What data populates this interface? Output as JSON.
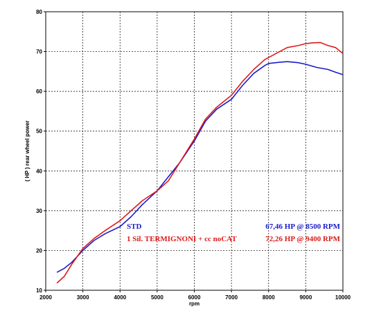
{
  "chart_data": {
    "type": "line",
    "title": "",
    "xlabel": "rpm",
    "ylabel": "( HP )  rear wheel power",
    "xlim": [
      2000,
      10000
    ],
    "ylim": [
      10,
      80
    ],
    "xticks": [
      2000,
      3000,
      4000,
      5000,
      6000,
      7000,
      8000,
      9000,
      10000
    ],
    "yticks": [
      10,
      20,
      30,
      40,
      50,
      60,
      70,
      80
    ],
    "grid": true,
    "legend_position": "lower-right inside plot",
    "series": [
      {
        "name": "STD",
        "peak_label": "67,46 HP @ 8500 RPM",
        "color": "#1a1acc",
        "x": [
          2300,
          2500,
          2700,
          3000,
          3300,
          3600,
          4000,
          4300,
          4600,
          5000,
          5300,
          5600,
          6000,
          6300,
          6600,
          7000,
          7300,
          7600,
          7900,
          8000,
          8300,
          8500,
          8800,
          9000,
          9300,
          9600,
          9800,
          10000
        ],
        "y": [
          14.5,
          15.5,
          17,
          20,
          22.5,
          24.2,
          26,
          28.5,
          31.5,
          35,
          38.5,
          42,
          47.5,
          52.5,
          55.5,
          58,
          61.5,
          64.5,
          66.5,
          67,
          67.3,
          67.46,
          67.2,
          66.8,
          66,
          65.5,
          64.8,
          64.2
        ]
      },
      {
        "name": "1 Sil. TERMIGNONI + cc noCAT",
        "peak_label": "72,26 HP @ 9400 RPM",
        "color": "#dd1a1a",
        "x": [
          2300,
          2500,
          2700,
          3000,
          3300,
          3600,
          4000,
          4300,
          4600,
          5000,
          5300,
          5600,
          6000,
          6300,
          6600,
          7000,
          7300,
          7600,
          7900,
          8200,
          8500,
          8800,
          9000,
          9200,
          9400,
          9600,
          9800,
          10000
        ],
        "y": [
          11.8,
          13.5,
          16.5,
          20.5,
          23,
          25,
          27.5,
          30,
          32.5,
          35,
          37.5,
          42,
          48,
          53,
          56,
          59,
          62.5,
          65.5,
          68,
          69.5,
          71,
          71.5,
          72,
          72.2,
          72.26,
          71.5,
          71,
          69.5
        ]
      }
    ]
  }
}
